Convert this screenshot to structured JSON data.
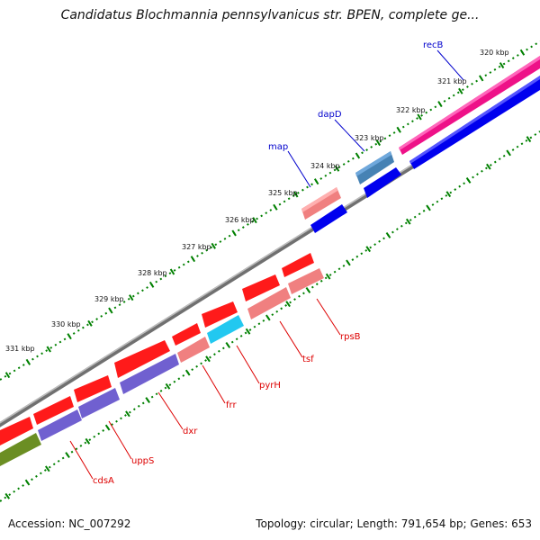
{
  "title": "Candidatus Blochmannia pennsylvanicus str. BPEN, complete ge...",
  "footer": {
    "accession": "Accession: NC_007292",
    "stats": "Topology: circular; Length: 791,654 bp; Genes: 653"
  },
  "kbp_labels": [
    "320 kbp",
    "321 kbp",
    "322 kbp",
    "323 kbp",
    "324 kbp",
    "325 kbp",
    "326 kbp",
    "327 kbp",
    "328 kbp",
    "329 kbp",
    "330 kbp",
    "331 kbp"
  ],
  "genes": [
    {
      "name": "recB",
      "color": "#0000cc"
    },
    {
      "name": "dapD",
      "color": "#0000cc"
    },
    {
      "name": "map",
      "color": "#0000cc"
    },
    {
      "name": "rpsB",
      "color": "#dd0000"
    },
    {
      "name": "tsf",
      "color": "#dd0000"
    },
    {
      "name": "pyrH",
      "color": "#dd0000"
    },
    {
      "name": "frr",
      "color": "#dd0000"
    },
    {
      "name": "dxr",
      "color": "#dd0000"
    },
    {
      "name": "uppS",
      "color": "#dd0000"
    },
    {
      "name": "cdsA",
      "color": "#dd0000"
    }
  ],
  "colors": {
    "forward_cds": "#ff1a1a",
    "reverse_cds": "#0000ee",
    "forward_gene_pink": "#f08080",
    "reverse_gene_purple": "#7060d0",
    "steelblue_gene": "#4682b4",
    "cyan_gene": "#22c8f0",
    "magenta_gene": "#ee1188",
    "olive_gene": "#6b8e23",
    "backbone": "#808080",
    "ticks": "#008000"
  }
}
